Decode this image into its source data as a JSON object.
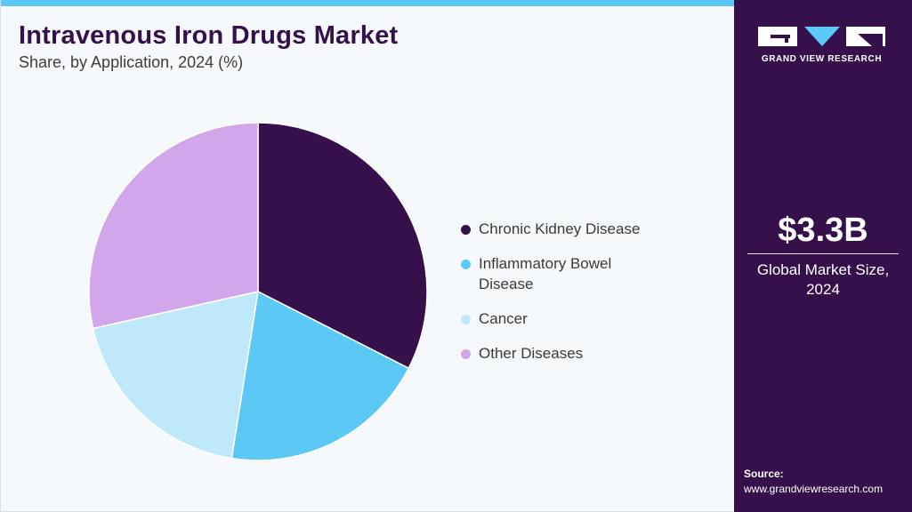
{
  "header": {
    "title": "Intravenous Iron Drugs Market",
    "subtitle": "Share, by Application, 2024 (%)"
  },
  "chart_data": {
    "type": "pie",
    "categories": [
      "Chronic Kidney Disease",
      "Inflammatory Bowel Disease",
      "Cancer",
      "Other Diseases"
    ],
    "values": [
      32.5,
      20.0,
      19.0,
      28.5
    ],
    "colors": [
      "#36104a",
      "#5bc8f5",
      "#bfe9fa",
      "#d2a6ea"
    ],
    "legend_position": "right"
  },
  "legend": {
    "items": [
      {
        "label_line1": "Chronic Kidney Disease",
        "label_line2": "",
        "color": "#36104a"
      },
      {
        "label_line1": "Inflammatory Bowel",
        "label_line2": "Disease",
        "color": "#5bc8f5"
      },
      {
        "label_line1": "Cancer",
        "label_line2": "",
        "color": "#bfe9fa"
      },
      {
        "label_line1": "Other Diseases",
        "label_line2": "",
        "color": "#d2a6ea"
      }
    ]
  },
  "sidebar": {
    "brand": "GRAND VIEW RESEARCH",
    "market_value": "$3.3B",
    "market_label_line1": "Global Market Size,",
    "market_label_line2": "2024",
    "source_label": "Source:",
    "source_url": "www.grandviewresearch.com"
  },
  "colors": {
    "accent_bar": "#5bc8f5",
    "sidebar_bg": "#36104a"
  }
}
